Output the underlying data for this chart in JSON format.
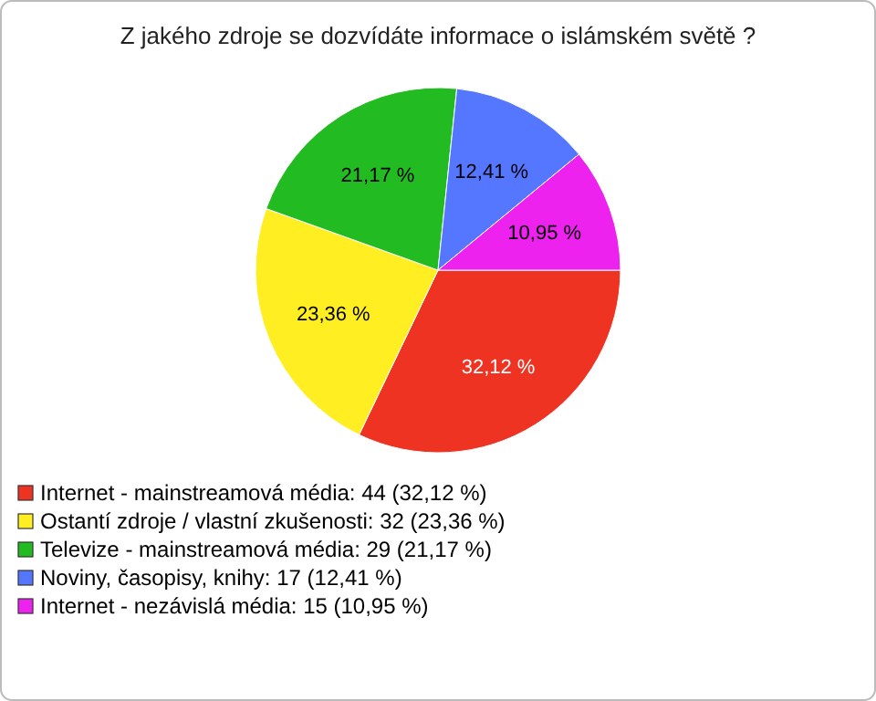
{
  "chart_data": {
    "type": "pie",
    "title": "Z jakého zdroje se dozvídáte informace o islámském světě ?",
    "categories": [
      "Internet - mainstreamová média: 44 (32,12 %)",
      "Ostantí zdroje / vlastní zkušenosti: 32 (23,36 %)",
      "Televize - mainstreamová média: 29 (21,17 %)",
      "Noviny, časopisy, knihy: 17 (12,41 %)",
      "Internet - nezávislá média: 15 (10,95 %)"
    ],
    "values": [
      32.12,
      23.36,
      21.17,
      12.41,
      10.95
    ],
    "value_labels": [
      "32,12 %",
      "23,36 %",
      "21,17 %",
      "12,41 %",
      "10,95 %"
    ],
    "colors": [
      "#ee3322",
      "#ffee22",
      "#22bb22",
      "#5577ff",
      "#ee22ee"
    ],
    "legend": "bottom left"
  }
}
